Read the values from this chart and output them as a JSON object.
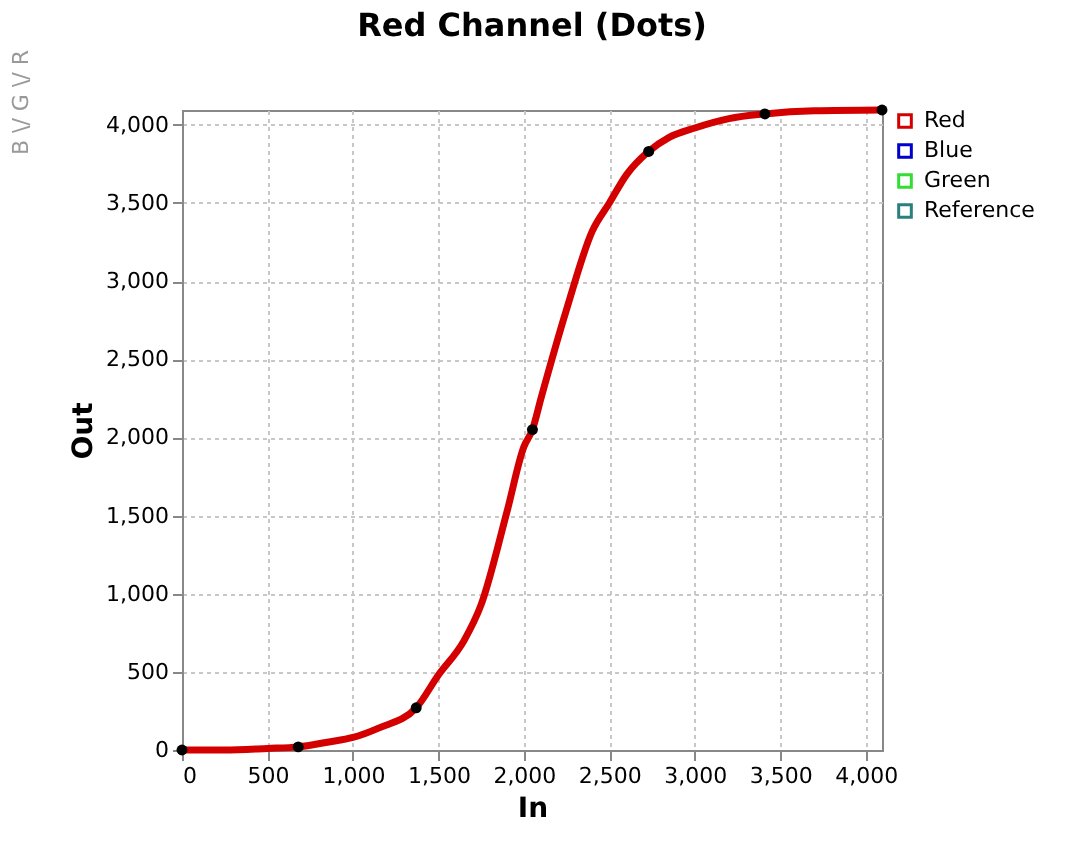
{
  "chart_data": {
    "type": "line",
    "title": "Red Channel (Dots)",
    "xlabel": "In",
    "ylabel": "Out",
    "annotations": [
      "B  \\/  G  \\/  R"
    ],
    "xlim": [
      0,
      4095
    ],
    "ylim": [
      0,
      4095
    ],
    "xticks": [
      0,
      {
        "value": 500,
        "label": "500"
      },
      {
        "value": 1000,
        "label": "1,000"
      },
      {
        "value": 1500,
        "label": "1,500"
      },
      {
        "value": 2000,
        "label": "2,000"
      },
      {
        "value": 2500,
        "label": "2,500"
      },
      {
        "value": 3000,
        "label": "3,000"
      },
      {
        "value": 3500,
        "label": "3,500"
      },
      {
        "value": 4000,
        "label": "4,000"
      }
    ],
    "yticks": [
      0,
      {
        "value": 500,
        "label": "500"
      },
      {
        "value": 1000,
        "label": "1,000"
      },
      {
        "value": 1500,
        "label": "1,500"
      },
      {
        "value": 2000,
        "label": "2,000"
      },
      {
        "value": 2500,
        "label": "2,500"
      },
      {
        "value": 3000,
        "label": "3,000"
      },
      {
        "value": 3500,
        "label": "3,500"
      },
      {
        "value": 4000,
        "label": "4,000"
      }
    ],
    "grid": true,
    "legend": "top right",
    "line_style": "solid",
    "series": [
      {
        "name": "Red",
        "color": "#d40000",
        "marker": "none",
        "x": [
          0,
          250,
          500,
          680,
          850,
          1000,
          1150,
          1370,
          1500,
          1650,
          1750,
          1900,
          2000,
          2050,
          2100,
          2250,
          2400,
          2500,
          2600,
          2730,
          2850,
          3000,
          3200,
          3410,
          3700,
          4095
        ],
        "values": [
          0,
          0,
          10,
          20,
          50,
          80,
          140,
          270,
          480,
          700,
          930,
          1520,
          1940,
          2050,
          2250,
          2820,
          3320,
          3500,
          3680,
          3830,
          3920,
          3980,
          4040,
          4070,
          4090,
          4095
        ]
      },
      {
        "name": "Blue",
        "color": "#0000cc",
        "marker": "none"
      },
      {
        "name": "Green",
        "color": "#33dd33",
        "marker": "none"
      },
      {
        "name": "Reference",
        "color": "#2a7f7f",
        "marker": "none"
      },
      {
        "color": "#000000",
        "type": "scatter",
        "marker": "circle",
        "x": [
          0,
          680,
          1370,
          2050,
          2730,
          3410,
          4095
        ],
        "values": [
          0,
          20,
          270,
          2050,
          3830,
          4070,
          4095
        ]
      }
    ]
  }
}
